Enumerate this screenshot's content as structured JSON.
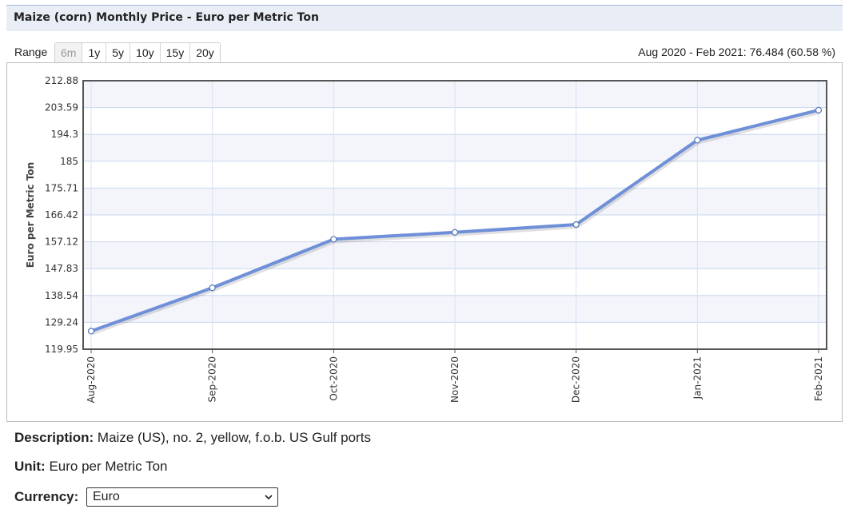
{
  "title": "Maize (corn) Monthly Price - Euro per Metric Ton",
  "range": {
    "label": "Range",
    "buttons": [
      "6m",
      "1y",
      "5y",
      "10y",
      "15y",
      "20y"
    ],
    "disabled": "6m",
    "summary": "Aug 2020 - Feb 2021: 76.484 (60.58 %)"
  },
  "chart_data": {
    "type": "line",
    "ylabel": "Euro per Metric Ton",
    "xlabel": "",
    "categories": [
      "Aug-2020",
      "Sep-2020",
      "Oct-2020",
      "Nov-2020",
      "Dec-2020",
      "Jan-2021",
      "Feb-2021"
    ],
    "series": [
      {
        "values": [
          126.2,
          141.2,
          158.0,
          160.4,
          163.1,
          192.3,
          202.7
        ]
      }
    ],
    "yticks": [
      "212.88",
      "203.59",
      "194.3",
      "185",
      "175.71",
      "166.42",
      "157.12",
      "147.83",
      "138.54",
      "129.24",
      "119.95"
    ],
    "ylim": [
      119.95,
      212.88
    ],
    "grid": true,
    "line_color": "#6f8fd8"
  },
  "description": {
    "label": "Description:",
    "value": "Maize (US), no. 2, yellow, f.o.b. US Gulf ports"
  },
  "unit": {
    "label": "Unit:",
    "value": "Euro per Metric Ton"
  },
  "currency": {
    "label": "Currency:",
    "value": "Euro"
  }
}
